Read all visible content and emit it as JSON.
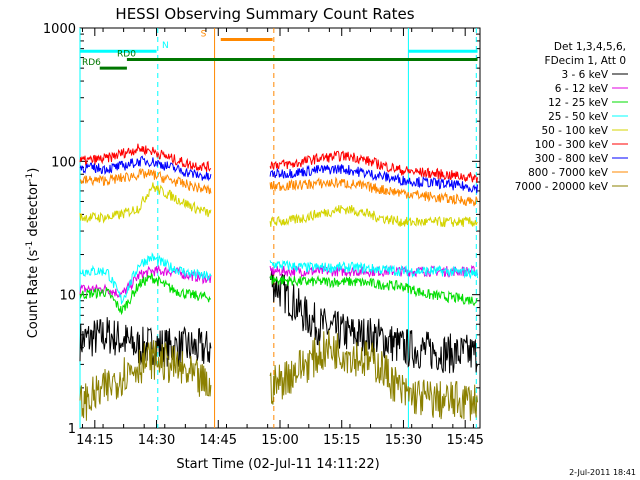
{
  "chart_data": {
    "type": "line",
    "title": "HESSI Observing Summary Count Rates",
    "xlabel": "Start Time (02-Jul-11 14:11:22)",
    "ylabel_pre": "Count Rate (s",
    "ylabel_sup1": "-1",
    "ylabel_mid": " detector",
    "ylabel_sup2": "-1",
    "ylabel_post": ")",
    "x_range_minutes": [
      0,
      5.0,
      100.0
    ],
    "x_ticks": [
      {
        "label": "14:15",
        "t": 14.25
      },
      {
        "label": "14:30",
        "t": 14.5
      },
      {
        "label": "14:45",
        "t": 14.75
      },
      {
        "label": "15:00",
        "t": 15.0
      },
      {
        "label": "15:15",
        "t": 15.25
      },
      {
        "label": "15:30",
        "t": 15.5
      },
      {
        "label": "15:45",
        "t": 15.75
      }
    ],
    "x_lim_hours": [
      14.19,
      15.81
    ],
    "y_scale": "log",
    "ylim": [
      1,
      1000
    ],
    "y_tick_labels": [
      "1",
      "10",
      "100",
      "1000"
    ],
    "legend_header": [
      "Det 1,3,4,5,6,",
      "FDecim 1, Att 0"
    ],
    "series": [
      {
        "name": "3 - 6 keV",
        "color": "#000000",
        "points": [
          [
            14.19,
            4.5
          ],
          [
            14.3,
            5.0
          ],
          [
            14.36,
            4.6
          ],
          [
            14.43,
            4.0
          ],
          [
            14.48,
            4.2
          ],
          [
            14.56,
            4.0
          ],
          [
            14.63,
            4.0
          ],
          [
            14.7,
            3.9
          ],
          [
            14.72,
            3.9
          ]
        ],
        "points2": [
          [
            14.96,
            13.0
          ],
          [
            15.0,
            11.0
          ],
          [
            15.05,
            9.0
          ],
          [
            15.1,
            7.0
          ],
          [
            15.15,
            6.0
          ],
          [
            15.2,
            5.5
          ],
          [
            15.3,
            5.0
          ],
          [
            15.4,
            4.8
          ],
          [
            15.5,
            4.0
          ],
          [
            15.6,
            3.8
          ],
          [
            15.7,
            3.6
          ],
          [
            15.8,
            3.6
          ]
        ]
      },
      {
        "name": "6 - 12 keV",
        "color": "#e000e0",
        "points": [
          [
            14.19,
            11.0
          ],
          [
            14.3,
            11.0
          ],
          [
            14.36,
            10.0
          ],
          [
            14.43,
            14.0
          ],
          [
            14.48,
            15.0
          ],
          [
            14.56,
            15.0
          ],
          [
            14.63,
            14.0
          ],
          [
            14.72,
            13.0
          ]
        ],
        "points2": [
          [
            14.96,
            15.0
          ],
          [
            15.1,
            15.0
          ],
          [
            15.3,
            15.0
          ],
          [
            15.5,
            15.0
          ],
          [
            15.65,
            15.0
          ],
          [
            15.8,
            15.0
          ]
        ]
      },
      {
        "name": "12 - 25 keV",
        "color": "#00dd00",
        "points": [
          [
            14.19,
            10.0
          ],
          [
            14.3,
            10.5
          ],
          [
            14.36,
            7.5
          ],
          [
            14.43,
            12.0
          ],
          [
            14.48,
            13.5
          ],
          [
            14.56,
            11.0
          ],
          [
            14.63,
            10.0
          ],
          [
            14.72,
            9.5
          ]
        ],
        "points2": [
          [
            14.96,
            13.0
          ],
          [
            15.1,
            12.5
          ],
          [
            15.3,
            12.5
          ],
          [
            15.5,
            11.5
          ],
          [
            15.6,
            10.0
          ],
          [
            15.7,
            9.5
          ],
          [
            15.8,
            9.0
          ]
        ]
      },
      {
        "name": "25 - 50 keV",
        "color": "#00ffff",
        "points": [
          [
            14.19,
            15.0
          ],
          [
            14.3,
            15.0
          ],
          [
            14.36,
            9.0
          ],
          [
            14.43,
            17.0
          ],
          [
            14.48,
            19.0
          ],
          [
            14.56,
            16.0
          ],
          [
            14.63,
            14.5
          ],
          [
            14.72,
            13.5
          ]
        ],
        "points2": [
          [
            14.96,
            17.0
          ],
          [
            15.1,
            16.0
          ],
          [
            15.3,
            16.0
          ],
          [
            15.5,
            15.0
          ],
          [
            15.65,
            15.0
          ],
          [
            15.8,
            14.5
          ]
        ]
      },
      {
        "name": "50 - 100 keV",
        "color": "#d4d400",
        "points": [
          [
            14.19,
            38.0
          ],
          [
            14.3,
            38.0
          ],
          [
            14.36,
            40.0
          ],
          [
            14.43,
            45.0
          ],
          [
            14.48,
            65.0
          ],
          [
            14.56,
            55.0
          ],
          [
            14.63,
            47.0
          ],
          [
            14.72,
            40.0
          ]
        ],
        "points2": [
          [
            14.96,
            35.0
          ],
          [
            15.05,
            36.0
          ],
          [
            15.15,
            40.0
          ],
          [
            15.25,
            44.0
          ],
          [
            15.3,
            43.0
          ],
          [
            15.4,
            38.0
          ],
          [
            15.5,
            35.0
          ],
          [
            15.65,
            35.0
          ],
          [
            15.8,
            35.0
          ]
        ]
      },
      {
        "name": "100 - 300 keV",
        "color": "#ff0000",
        "points": [
          [
            14.19,
            100.0
          ],
          [
            14.3,
            105.0
          ],
          [
            14.36,
            115.0
          ],
          [
            14.43,
            125.0
          ],
          [
            14.48,
            120.0
          ],
          [
            14.56,
            105.0
          ],
          [
            14.63,
            95.0
          ],
          [
            14.72,
            90.0
          ]
        ],
        "points2": [
          [
            14.96,
            95.0
          ],
          [
            15.05,
            95.0
          ],
          [
            15.15,
            105.0
          ],
          [
            15.25,
            110.0
          ],
          [
            15.3,
            108.0
          ],
          [
            15.4,
            95.0
          ],
          [
            15.5,
            85.0
          ],
          [
            15.65,
            80.0
          ],
          [
            15.8,
            75.0
          ]
        ]
      },
      {
        "name": "300 - 800 keV",
        "color": "#0000ff",
        "points": [
          [
            14.19,
            90.0
          ],
          [
            14.3,
            88.0
          ],
          [
            14.36,
            92.0
          ],
          [
            14.43,
            100.0
          ],
          [
            14.48,
            100.0
          ],
          [
            14.56,
            90.0
          ],
          [
            14.63,
            82.0
          ],
          [
            14.72,
            75.0
          ]
        ],
        "points2": [
          [
            14.96,
            80.0
          ],
          [
            15.05,
            82.0
          ],
          [
            15.15,
            86.0
          ],
          [
            15.25,
            88.0
          ],
          [
            15.3,
            85.0
          ],
          [
            15.4,
            78.0
          ],
          [
            15.5,
            72.0
          ],
          [
            15.65,
            68.0
          ],
          [
            15.8,
            63.0
          ]
        ]
      },
      {
        "name": "800 - 7000 keV",
        "color": "#ff8800",
        "points": [
          [
            14.19,
            72.0
          ],
          [
            14.3,
            72.0
          ],
          [
            14.36,
            75.0
          ],
          [
            14.43,
            80.0
          ],
          [
            14.48,
            80.0
          ],
          [
            14.56,
            72.0
          ],
          [
            14.63,
            66.0
          ],
          [
            14.72,
            60.0
          ]
        ],
        "points2": [
          [
            14.96,
            65.0
          ],
          [
            15.05,
            66.0
          ],
          [
            15.15,
            68.0
          ],
          [
            15.25,
            69.0
          ],
          [
            15.3,
            67.0
          ],
          [
            15.4,
            62.0
          ],
          [
            15.5,
            58.0
          ],
          [
            15.65,
            53.0
          ],
          [
            15.8,
            50.0
          ]
        ]
      },
      {
        "name": "7000 - 20000 keV",
        "color": "#8b8000",
        "points": [
          [
            14.19,
            1.5
          ],
          [
            14.3,
            2.0
          ],
          [
            14.36,
            2.5
          ],
          [
            14.43,
            3.0
          ],
          [
            14.48,
            3.3
          ],
          [
            14.56,
            3.0
          ],
          [
            14.63,
            2.5
          ],
          [
            14.72,
            2.0
          ]
        ],
        "points2": [
          [
            14.96,
            2.0
          ],
          [
            15.1,
            3.0
          ],
          [
            15.2,
            4.0
          ],
          [
            15.3,
            3.5
          ],
          [
            15.4,
            3.0
          ],
          [
            15.5,
            1.8
          ],
          [
            15.65,
            1.6
          ],
          [
            15.8,
            1.6
          ]
        ]
      }
    ],
    "flags": [
      {
        "label": "N",
        "color": "#00ffff",
        "y": 670,
        "segments": [
          [
            14.19,
            14.5
          ],
          [
            15.52,
            15.8
          ]
        ]
      },
      {
        "label": "S",
        "color": "#ff8800",
        "y": 820,
        "segments": [
          [
            14.76,
            14.97
          ]
        ]
      },
      {
        "label": "RD0",
        "color": "#007700",
        "y": 580,
        "segments": [
          [
            14.38,
            15.8
          ]
        ]
      },
      {
        "label": "RD6",
        "color": "#007700",
        "y": 500,
        "segments": [
          [
            14.27,
            14.38
          ]
        ]
      }
    ],
    "vlines": [
      {
        "t": 14.19,
        "color": "#00ffff",
        "dash": false
      },
      {
        "t": 14.505,
        "color": "#00ffff",
        "dash": true
      },
      {
        "t": 14.735,
        "color": "#ff8800",
        "dash": false
      },
      {
        "t": 14.975,
        "color": "#ff8800",
        "dash": true
      },
      {
        "t": 15.52,
        "color": "#00ffff",
        "dash": false
      },
      {
        "t": 15.795,
        "color": "#00ffff",
        "dash": true
      }
    ],
    "datestamp": "2-Jul-2011 18:41"
  }
}
